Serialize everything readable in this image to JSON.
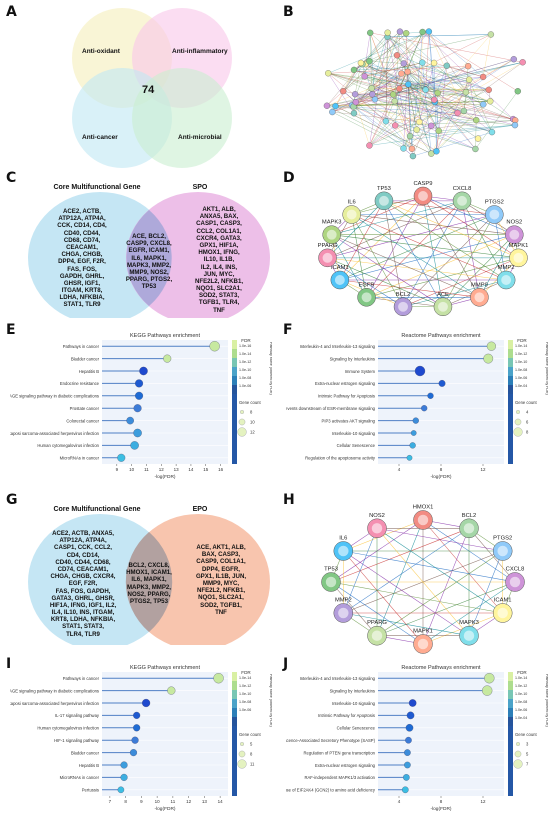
{
  "panels": {
    "A": {
      "label": "A",
      "sets": [
        "Anti-oxidant",
        "Anti-inflammatory",
        "Anti-cancer",
        "Anti-microbial"
      ],
      "center": "74",
      "colors": [
        "#f7f1c4",
        "#f9c7ea",
        "#bfe8f3",
        "#c9efd1"
      ]
    },
    "B": {
      "label": "B"
    },
    "C": {
      "label": "C",
      "left_title": "Core Multifunctional Gene",
      "right_title": "SPO",
      "left": [
        "ACE2, ACTB,",
        "ATP12A, ATP4A,",
        "CCK, CD14, CD4,",
        "CD40, CD44,",
        "CD68, CD74,",
        "CEACAM1,",
        "CHGA, CHGB,",
        "DPP4, EGF, F2R,",
        "FAS, FOS,",
        "GAPDH, GHRL,",
        "GHSR, IGF1,",
        "ITGAM, KRT8,",
        "LDHA, NFKBIA,",
        "STAT1, TLR9"
      ],
      "overlap": [
        "ACE, BCL2,",
        "CASP9, CXCL8,",
        "EGFR, ICAM1,",
        "IL6, MAPK1,",
        "MAPK3, MMP2,",
        "MMP9, NOS2,",
        "PPARG, PTGS2,",
        "TP53"
      ],
      "right": [
        "AKT1, ALB,",
        "ANXA5, BAX,",
        "CASP1, CASP3,",
        "CCL2, COL1A1,",
        "CXCR4, GATA3,",
        "GPX1, HIF1A,",
        "HMOX1, IFNG,",
        "IL10, IL1B,",
        "IL2, IL4, INS,",
        "JUN, MYC,",
        "NFE2L2, NFKB1,",
        "NQO1, SLC2A1,",
        "SOD2, STAT3,",
        "TGFB1, TLR4,",
        "TNF"
      ]
    },
    "D": {
      "label": "D",
      "nodes": [
        "CASP9",
        "CXCL8",
        "PTGS2",
        "NOS2",
        "MAPK1",
        "MMP2",
        "MMP9",
        "ACE",
        "BCL2",
        "EGFR",
        "ICAM1",
        "PPARG",
        "MAPK3",
        "IL6",
        "TP53"
      ]
    },
    "E": {
      "label": "E",
      "title": "KEGG Pathways enrichment",
      "xlabel": "-log(FDR)",
      "xticks": [
        "9",
        "10",
        "11",
        "12",
        "13",
        "14",
        "15",
        "16"
      ],
      "fdr_label": "FDR",
      "fdr_ticks": [
        "1.0e-16",
        "1.0e-14",
        "1.0e-12",
        "1.0e-10",
        "1.0e-08",
        "1.0e-06"
      ],
      "count_label": "Gene count",
      "count_ticks": [
        "8",
        "10",
        "12"
      ],
      "axis_label": "Pathway name (ordered by FDR)"
    },
    "F": {
      "label": "F",
      "title": "Reactome Pathways enrichment",
      "xlabel": "-log(FDR)",
      "xticks": [
        "4",
        "8",
        "12"
      ],
      "fdr_label": "FDR",
      "fdr_ticks": [
        "1.0e-14",
        "1.0e-12",
        "1.0e-10",
        "1.0e-08",
        "1.0e-06",
        "1.0e-04"
      ],
      "count_label": "Gene count",
      "count_ticks": [
        "4",
        "6",
        "8"
      ],
      "axis_label": "Pathway name (ordered by FDR)"
    },
    "G": {
      "label": "G",
      "left_title": "Core Multifunctional Gene",
      "right_title": "EPO",
      "left": [
        "ACE2, ACTB, ANXA5,",
        "ATP12A, ATP4A,",
        "CASP1, CCK, CCL2,",
        "CD4, CD14,",
        "CD40, CD44, CD68,",
        "CD74, CEACAM1,",
        "CHGA, CHGB, CXCR4,",
        "EGF, F2R,",
        "FAS, FOS, GAPDH,",
        "GATA3, GHRL, GHSR,",
        "HIF1A, IFNG, IGF1, IL2,",
        "IL4, IL10, INS, ITGAM,",
        "KRT8, LDHA, NFKBIA,",
        "STAT1, STAT3,",
        "TLR4, TLR9"
      ],
      "overlap": [
        "BCL2, CXCL8,",
        "HMOX1, ICAM1,",
        "IL6, MAPK1,",
        "MAPK3, MMP2,",
        "NOS2, PPARG,",
        "PTGS2, TP53"
      ],
      "right": [
        "ACE, AKT1, ALB,",
        "BAX, CASP3,",
        "CASP9, COL1A1,",
        "DPP4, EGFR,",
        "GPX1, IL1B, JUN,",
        "MMP9, MYC,",
        "NFE2L2, NFKB1,",
        "NQO1, SLC2A1,",
        "SOD2, TGFB1,",
        "TNF"
      ]
    },
    "H": {
      "label": "H",
      "nodes": [
        "HMOX1",
        "BCL2",
        "PTGS2",
        "CXCL8",
        "ICAM1",
        "MAPK3",
        "MAPK1",
        "PPARG",
        "MMP2",
        "TP53",
        "IL6",
        "NOS2"
      ]
    },
    "I": {
      "label": "I",
      "title": "KEGG Pathways enrichment",
      "xlabel": "-log(FDR)",
      "xticks": [
        "7",
        "8",
        "9",
        "10",
        "11",
        "12",
        "13",
        "14"
      ],
      "fdr_label": "FDR",
      "fdr_ticks": [
        "1.0e-14",
        "1.0e-12",
        "1.0e-10",
        "1.0e-08",
        "1.0e-06"
      ],
      "count_label": "Gene count",
      "count_ticks": [
        "5",
        "8",
        "11"
      ],
      "axis_label": "Pathway name (ordered by FDR)"
    },
    "J": {
      "label": "J",
      "title": "Reactome Pathways enrichment",
      "xlabel": "-log(FDR)",
      "xticks": [
        "4",
        "8",
        "12"
      ],
      "fdr_label": "FDR",
      "fdr_ticks": [
        "1.0e-14",
        "1.0e-12",
        "1.0e-10",
        "1.0e-08",
        "1.0e-06",
        "1.0e-04"
      ],
      "count_label": "Gene count",
      "count_ticks": [
        "3",
        "5",
        "7"
      ],
      "axis_label": "Pathway name (ordered by FDR)"
    }
  },
  "chart_data": [
    {
      "panel": "E",
      "type": "scatter",
      "title": "KEGG Pathways enrichment",
      "xlabel": "-log(FDR)",
      "xlim": [
        8,
        16.5
      ],
      "categories": [
        "Pathways in cancer",
        "Bladder cancer",
        "Hepatitis B",
        "Endocrine resistance",
        "AGE-RAGE signaling pathway in diabetic complications",
        "Prostate cancer",
        "Colorectal cancer",
        "Kaposi sarcoma-associated herpesvirus infection",
        "Human cytomegalovirus infection",
        "MicroRNAs in cancer"
      ],
      "values": [
        15.6,
        12.4,
        10.8,
        10.5,
        10.5,
        10.4,
        9.9,
        10.4,
        10.2,
        9.3
      ],
      "gene_count": [
        14,
        9,
        10,
        9,
        9,
        9,
        8,
        10,
        10,
        9
      ]
    },
    {
      "panel": "F",
      "type": "scatter",
      "title": "Reactome Pathways enrichment",
      "xlabel": "-log(FDR)",
      "xlim": [
        2,
        14
      ],
      "categories": [
        "Interleukin-4 and Interleukin-13 signaling",
        "Signaling by Interleukins",
        "Immune System",
        "Extra-nuclear estrogen signaling",
        "Intrinsic Pathway for Apoptosis",
        "Estrogen-dependent nuclear events downstream of ESR-membrane signaling",
        "PIP3 activates AKT signaling",
        "Interleukin-10 signaling",
        "Cellular Senescence",
        "Regulation of the apoptosome activity"
      ],
      "values": [
        12.8,
        12.5,
        6.0,
        8.1,
        7.0,
        6.4,
        5.6,
        5.4,
        5.3,
        5.0
      ],
      "gene_count": [
        9,
        10,
        11,
        5,
        4,
        4,
        4,
        3,
        4,
        3
      ]
    },
    {
      "panel": "I",
      "type": "scatter",
      "title": "KEGG Pathways enrichment",
      "xlabel": "-log(FDR)",
      "xlim": [
        6.5,
        14.5
      ],
      "categories": [
        "Pathways in cancer",
        "AGE-RAGE signaling pathway in diabetic complications",
        "Kaposi sarcoma-associated herpesvirus infection",
        "IL-17 signaling pathway",
        "Human cytomegalovirus infection",
        "HIF-1 signaling pathway",
        "Bladder cancer",
        "Hepatitis B",
        "MicroRNAs in cancer",
        "Pertussis"
      ],
      "values": [
        13.9,
        10.9,
        9.3,
        8.7,
        8.7,
        8.6,
        8.5,
        7.9,
        7.9,
        7.7
      ],
      "gene_count": [
        12,
        8,
        8,
        6,
        6,
        6,
        6,
        6,
        6,
        5
      ]
    },
    {
      "panel": "J",
      "type": "scatter",
      "title": "Reactome Pathways enrichment",
      "xlabel": "-log(FDR)",
      "xlim": [
        2,
        14
      ],
      "categories": [
        "Interleukin-4 and Interleukin-13 signaling",
        "Signaling by Interleukins",
        "Interleukin-10 signaling",
        "Intrinsic Pathway for Apoptosis",
        "Cellular Senescence",
        "Senescence-Associated Secretory Phenotype (SASP)",
        "Regulation of PTEN gene transcription",
        "Extra-nuclear estrogen signaling",
        "RAF-independent MAPK1/3 activation",
        "Response of EIF2AK4 (GCN2) to amino acid deficiency"
      ],
      "values": [
        12.6,
        12.4,
        5.3,
        5.1,
        5.0,
        4.9,
        4.8,
        4.8,
        4.7,
        4.6
      ],
      "gene_count": [
        7,
        7,
        4,
        4,
        4,
        3,
        3,
        3,
        3,
        3
      ]
    }
  ]
}
